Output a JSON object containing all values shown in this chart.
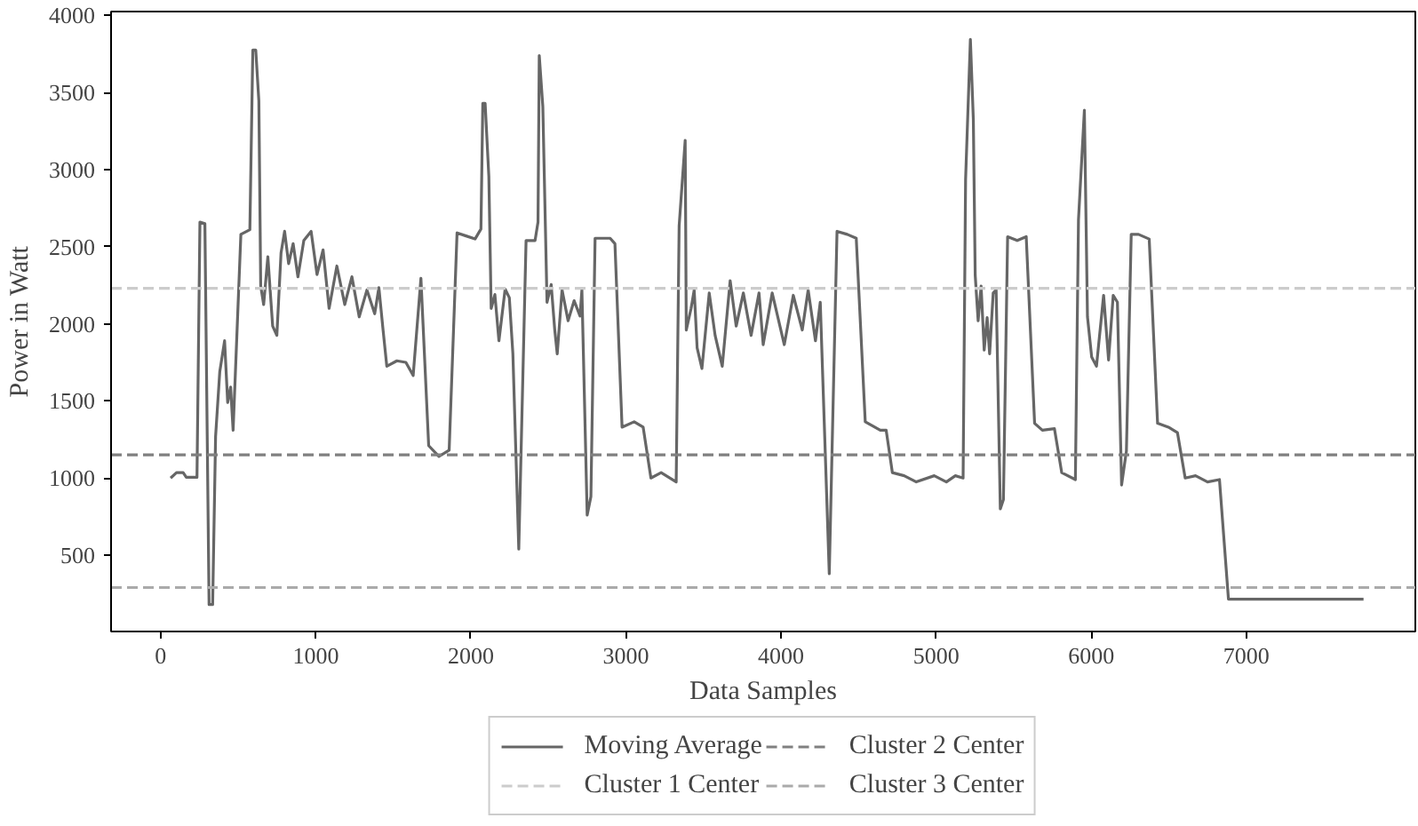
{
  "chart_data": {
    "type": "line",
    "xlabel": "Data Samples",
    "ylabel": "Power in Watt",
    "x": [
      64,
      102,
      145,
      165,
      234,
      253,
      285,
      312,
      335,
      354,
      381,
      412,
      432,
      451,
      467,
      517,
      575,
      594,
      613,
      633,
      645,
      664,
      691,
      722,
      749,
      776,
      799,
      825,
      854,
      885,
      923,
      970,
      1008,
      1047,
      1086,
      1136,
      1187,
      1233,
      1280,
      1330,
      1380,
      1407,
      1434,
      1458,
      1523,
      1581,
      1628,
      1678,
      1728,
      1794,
      1860,
      1911,
      1969,
      2027,
      2065,
      2077,
      2092,
      2116,
      2131,
      2155,
      2181,
      2221,
      2248,
      2271,
      2309,
      2356,
      2414,
      2433,
      2441,
      2464,
      2491,
      2518,
      2541,
      2557,
      2588,
      2627,
      2666,
      2704,
      2716,
      2750,
      2774,
      2801,
      2898,
      2929,
      2975,
      3053,
      3111,
      3161,
      3227,
      3324,
      3343,
      3382,
      3389,
      3420,
      3440,
      3459,
      3490,
      3537,
      3575,
      3621,
      3672,
      3711,
      3757,
      3807,
      3858,
      3885,
      3943,
      4021,
      4079,
      4137,
      4175,
      4222,
      4253,
      4311,
      4361,
      4427,
      4485,
      4543,
      4640,
      4678,
      4718,
      4794,
      4872,
      4988,
      5066,
      5124,
      5174,
      5190,
      5221,
      5240,
      5252,
      5271,
      5290,
      5310,
      5329,
      5345,
      5368,
      5387,
      5414,
      5434,
      5461,
      5523,
      5581,
      5635,
      5685,
      5763,
      5810,
      5898,
      5918,
      5956,
      5976,
      6003,
      6034,
      6080,
      6112,
      6142,
      6169,
      6196,
      6227,
      6258,
      6305,
      6374,
      6428,
      6498,
      6556,
      6606,
      6673,
      6750,
      6827,
      6885,
      7756
    ],
    "series": [
      {
        "name": "Moving Average",
        "color": "#666666",
        "values": [
          1000,
          1035,
          1035,
          1005,
          1005,
          2660,
          2650,
          180,
          180,
          1270,
          1690,
          1890,
          1490,
          1590,
          1310,
          2580,
          2610,
          3775,
          3775,
          3445,
          2245,
          2125,
          2435,
          1985,
          1925,
          2460,
          2600,
          2390,
          2520,
          2305,
          2540,
          2600,
          2320,
          2480,
          2100,
          2375,
          2125,
          2305,
          2045,
          2220,
          2065,
          2235,
          1960,
          1725,
          1760,
          1750,
          1665,
          2295,
          1210,
          1140,
          1180,
          2590,
          2570,
          2550,
          2615,
          3430,
          3430,
          2955,
          2100,
          2190,
          1890,
          2225,
          2170,
          1805,
          540,
          2540,
          2540,
          2660,
          3740,
          3410,
          2140,
          2255,
          1960,
          1805,
          2220,
          2020,
          2150,
          2050,
          2220,
          760,
          880,
          2555,
          2555,
          2520,
          1330,
          1365,
          1330,
          1000,
          1035,
          975,
          2635,
          3190,
          1960,
          2100,
          2220,
          1845,
          1710,
          2200,
          1925,
          1725,
          2280,
          1985,
          2200,
          1925,
          2200,
          1865,
          2200,
          1865,
          2185,
          1960,
          2220,
          1890,
          2140,
          380,
          2600,
          2580,
          2555,
          1365,
          1310,
          1310,
          1035,
          1015,
          975,
          1015,
          975,
          1015,
          1000,
          2935,
          3845,
          3325,
          2315,
          2020,
          2245,
          1830,
          2040,
          1805,
          2200,
          2220,
          800,
          860,
          2565,
          2540,
          2565,
          1355,
          1310,
          1320,
          1035,
          990,
          2675,
          3385,
          2045,
          1785,
          1725,
          2185,
          1765,
          2185,
          2140,
          955,
          1175,
          2580,
          2580,
          2550,
          1355,
          1330,
          1295,
          1000,
          1015,
          975,
          990,
          215,
          215
        ]
      }
    ],
    "ref_lines": [
      {
        "axis": "y",
        "value": 2230,
        "label": "Cluster 1 Center",
        "color": "#cccccc",
        "line_style": "dashed"
      },
      {
        "axis": "y",
        "value": 1150,
        "label": "Cluster 2 Center",
        "color": "#808080",
        "line_style": "dashed"
      },
      {
        "axis": "y",
        "value": 290,
        "label": "Cluster 3 Center",
        "color": "#aaaaaa",
        "line_style": "dashed"
      }
    ],
    "xlim": [
      -320,
      8090
    ],
    "ylim": [
      5,
      4025
    ],
    "xticks": [
      0,
      1000,
      2000,
      3000,
      4000,
      5000,
      6000,
      7000
    ],
    "yticks": [
      500,
      1000,
      1500,
      2000,
      2500,
      3000,
      3500,
      4000
    ],
    "grid": false,
    "legend": "bottom",
    "marker": "none",
    "line_style": "solid"
  }
}
